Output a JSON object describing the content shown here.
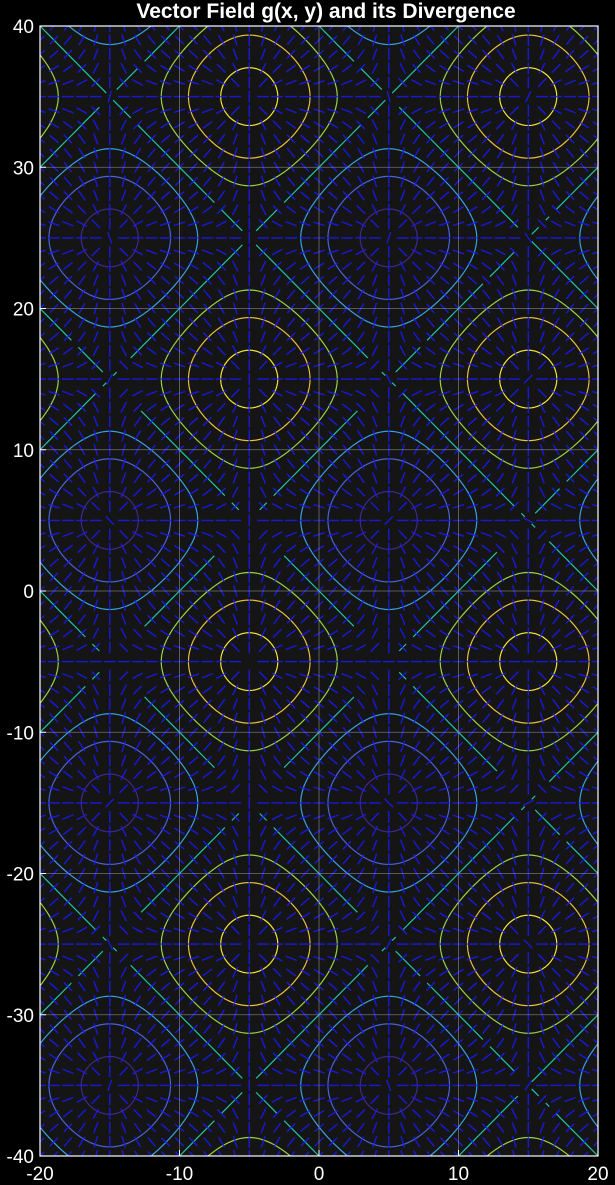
{
  "chart_data": {
    "type": "contour",
    "title": "Vector Field g(x, y) and its Divergence",
    "xlabel": "",
    "ylabel": "",
    "xlim": [
      -20,
      20
    ],
    "ylim": [
      -40,
      40
    ],
    "x_ticks": [
      -20,
      -10,
      0,
      10,
      20
    ],
    "y_ticks": [
      -40,
      -30,
      -20,
      -10,
      0,
      10,
      20,
      30,
      40
    ],
    "x_tick_labels": [
      "-20",
      "-10",
      "0",
      "10",
      "20"
    ],
    "y_tick_labels": [
      "-40",
      "-30",
      "-20",
      "-10",
      "0",
      "10",
      "20",
      "30",
      "40"
    ],
    "grid": true,
    "background_color": "#151515",
    "figure_color": "#000000",
    "series": [
      {
        "kind": "contour",
        "field": "divergence",
        "peak_centers": [
          [
            -5,
            35
          ],
          [
            15,
            35
          ],
          [
            -5,
            15
          ],
          [
            15,
            15
          ],
          [
            -5,
            -5
          ],
          [
            15,
            -5
          ],
          [
            -5,
            -25
          ],
          [
            15,
            -25
          ]
        ],
        "trough_centers": [
          [
            -15,
            25
          ],
          [
            5,
            25
          ],
          [
            -15,
            5
          ],
          [
            5,
            5
          ],
          [
            -15,
            -15
          ],
          [
            5,
            -15
          ],
          [
            -15,
            -35
          ],
          [
            5,
            -35
          ]
        ],
        "saddle_lines": "diagonals through x = ±10, y = 10k",
        "colormap": [
          "#3e2a8c",
          "#4a63d8",
          "#3aa0e0",
          "#22c3a8",
          "#9ad24a",
          "#e8c140",
          "#f5e836"
        ]
      },
      {
        "kind": "quiver",
        "field": "g(x, y)",
        "color": "#1a1aff",
        "spacing": 1
      }
    ]
  }
}
